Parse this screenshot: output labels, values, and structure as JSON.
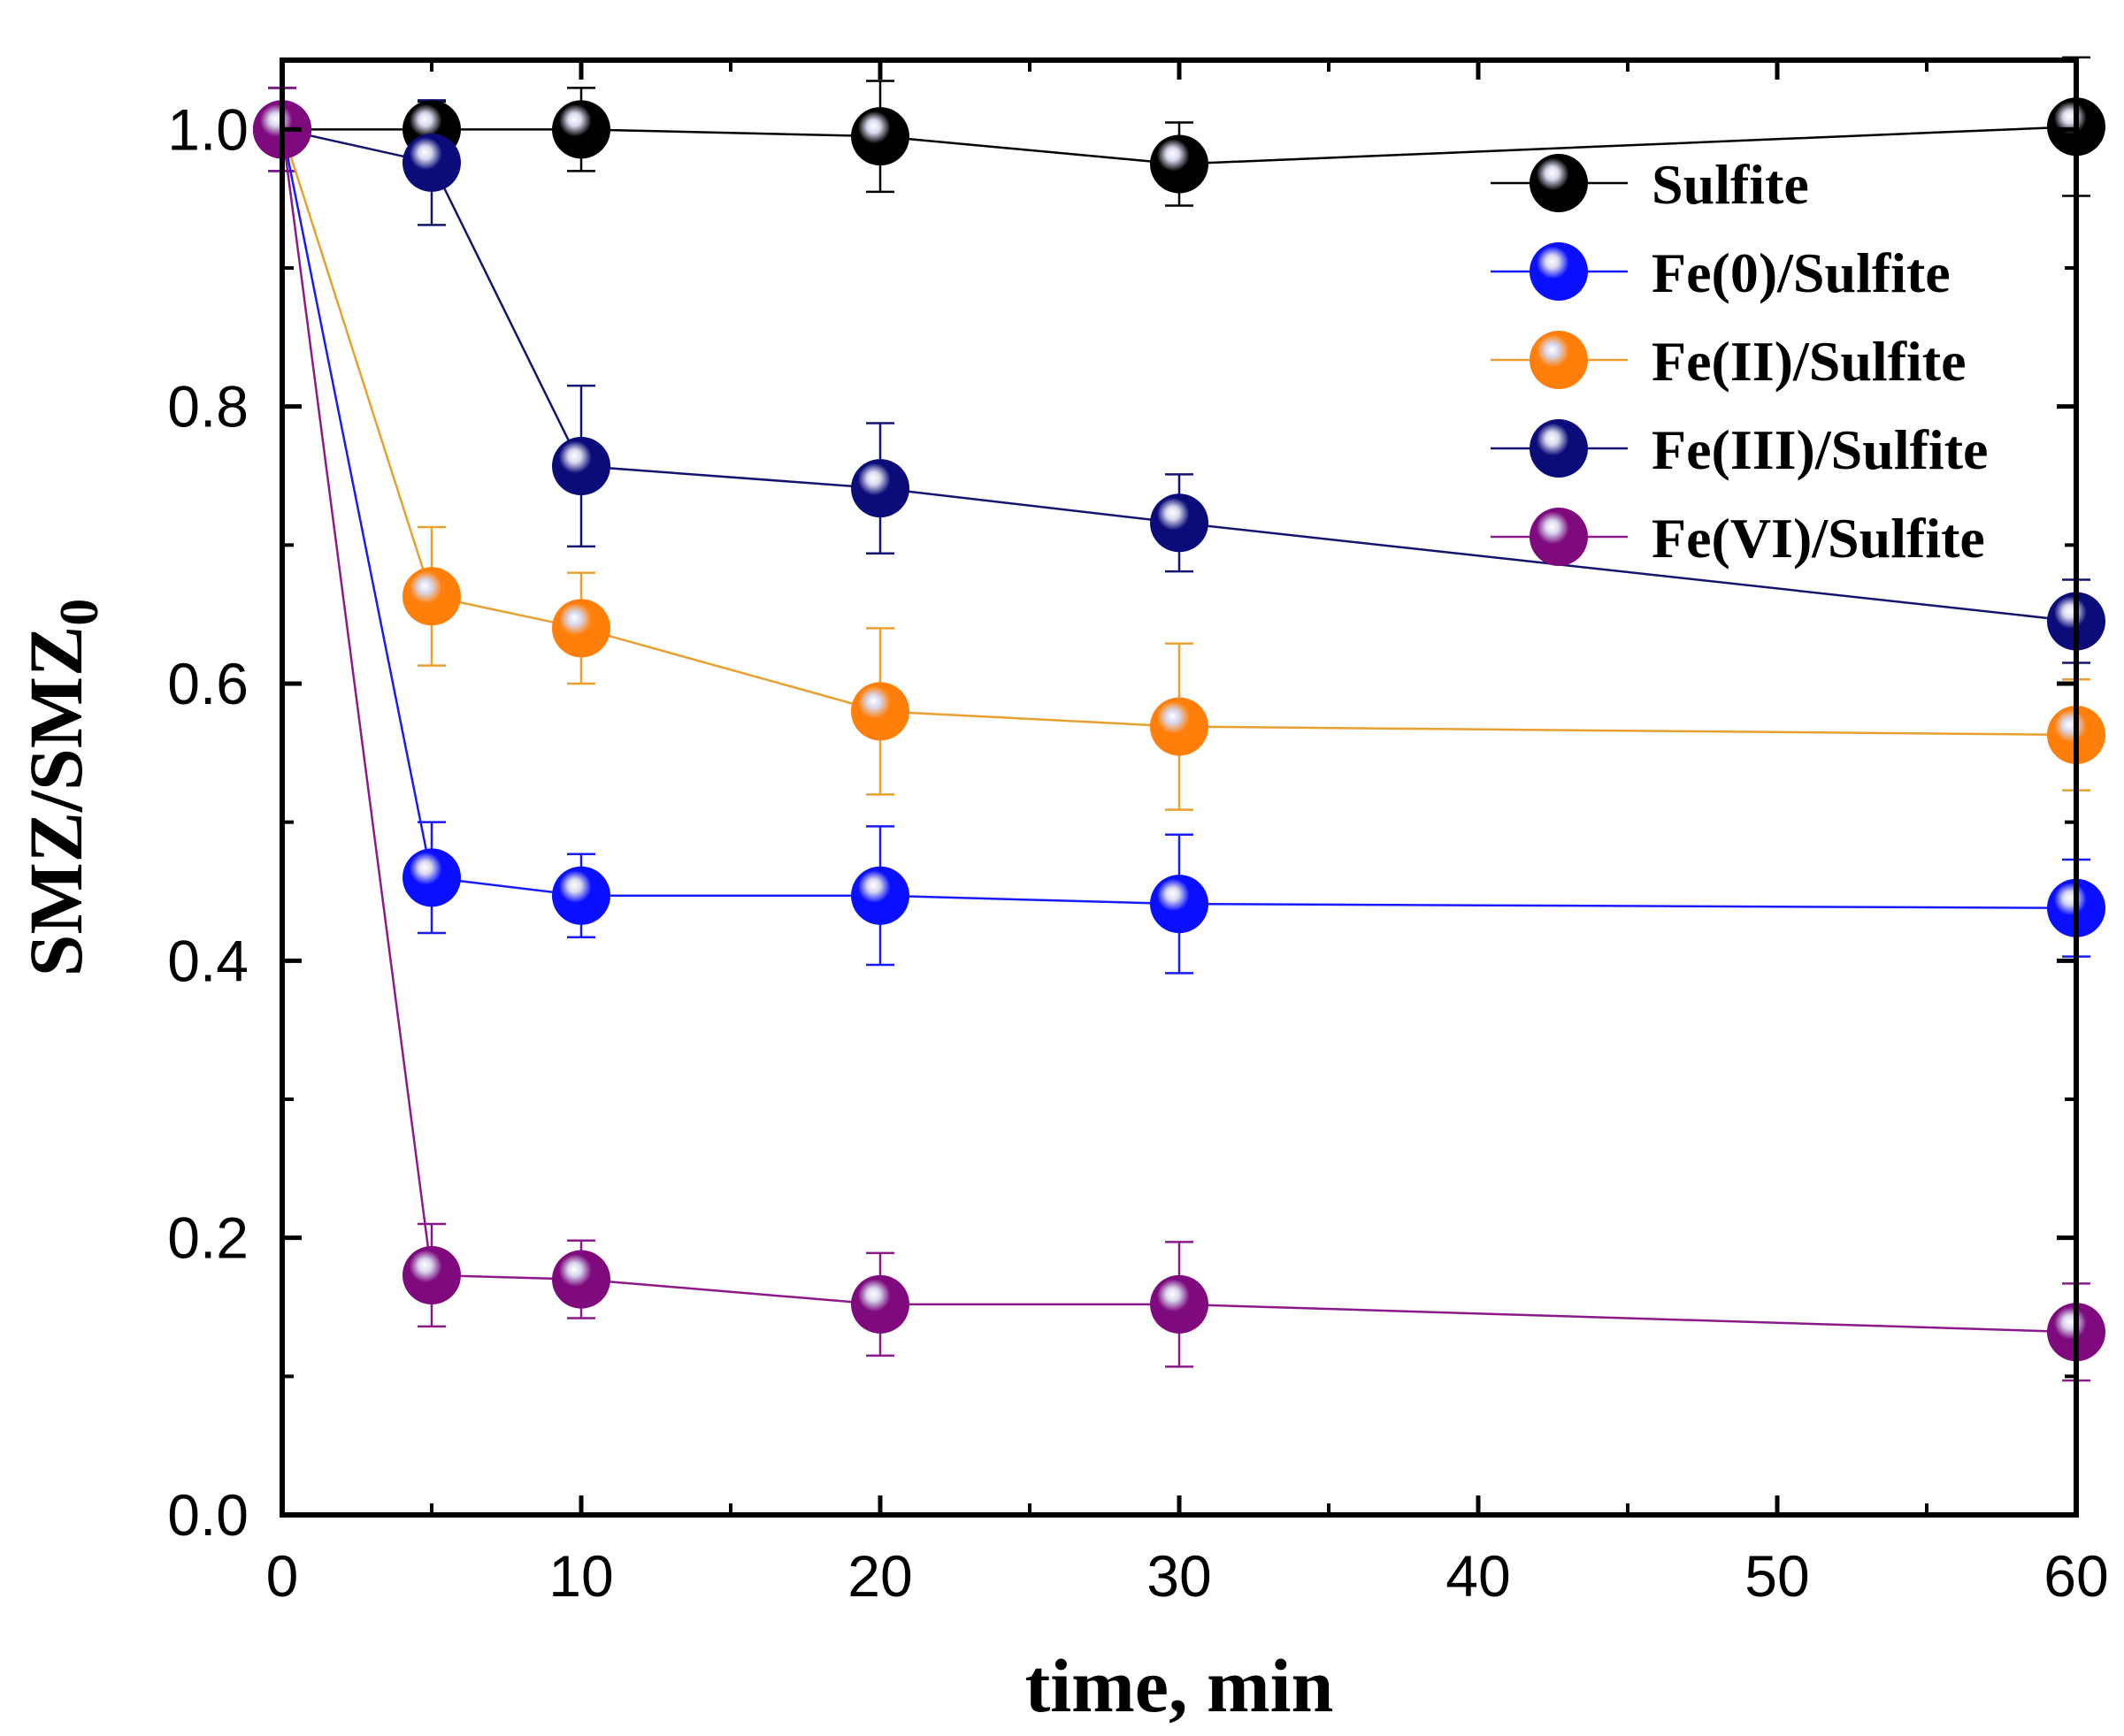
{
  "chart_data": {
    "type": "line",
    "title": "",
    "xlabel": "time, min",
    "ylabel": {
      "main": "SMZ/SMZ",
      "subscript": "0"
    },
    "xlim": [
      0,
      60
    ],
    "ylim": [
      0,
      1.05
    ],
    "xticks": [
      0,
      10,
      20,
      30,
      40,
      50,
      60
    ],
    "yticks": [
      0.0,
      0.2,
      0.4,
      0.6,
      0.8,
      1.0
    ],
    "xtick_labels": [
      "0",
      "10",
      "20",
      "30",
      "40",
      "50",
      "60"
    ],
    "ytick_labels": [
      "0.0",
      "0.2",
      "0.4",
      "0.6",
      "0.8",
      "1.0"
    ],
    "grid": false,
    "legend_position": "top-right",
    "x": [
      0,
      5,
      10,
      20,
      30,
      60
    ],
    "series": [
      {
        "name": "Sulfite",
        "color": "#000000",
        "line_color": "#000000",
        "values": [
          1.0,
          1.0,
          1.0,
          0.995,
          0.975,
          1.002
        ],
        "errors": [
          0.03,
          0.02,
          0.03,
          0.04,
          0.03,
          0.05
        ]
      },
      {
        "name": "Fe(0)/Sulfite",
        "color": "#0a10ff",
        "line_color": "#1a1aff",
        "values": [
          1.0,
          0.46,
          0.447,
          0.447,
          0.441,
          0.438
        ],
        "errors": [
          0.03,
          0.04,
          0.03,
          0.05,
          0.05,
          0.035
        ]
      },
      {
        "name": "Fe(II)/Sulfite",
        "color": "#ff7f0a",
        "line_color": "#e8a030",
        "values": [
          1.0,
          0.663,
          0.64,
          0.58,
          0.569,
          0.563
        ],
        "errors": [
          0.03,
          0.05,
          0.04,
          0.06,
          0.06,
          0.04
        ]
      },
      {
        "name": "Fe(III)/Sulfite",
        "color": "#0b0b7a",
        "line_color": "#141470",
        "values": [
          1.0,
          0.976,
          0.757,
          0.741,
          0.716,
          0.645
        ],
        "errors": [
          0.03,
          0.045,
          0.058,
          0.047,
          0.035,
          0.03
        ]
      },
      {
        "name": "Fe(VI)/Sulfite",
        "color": "#7e0a7e",
        "line_color": "#8a1a8a",
        "values": [
          1.0,
          0.173,
          0.17,
          0.152,
          0.152,
          0.132
        ],
        "errors": [
          0.03,
          0.037,
          0.028,
          0.037,
          0.045,
          0.035
        ]
      }
    ]
  }
}
